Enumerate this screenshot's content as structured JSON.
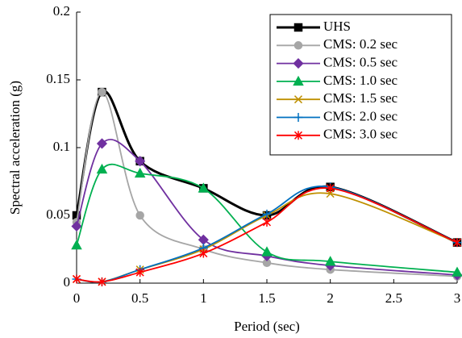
{
  "chart_data": {
    "type": "line",
    "xlabel": "Period (sec)",
    "ylabel": "Spectral acceleration (g)",
    "x": [
      0,
      0.2,
      0.5,
      1,
      1.5,
      2,
      3
    ],
    "xlim": [
      0,
      3
    ],
    "xticks": [
      0,
      0.5,
      1,
      1.5,
      2,
      2.5,
      3
    ],
    "ylim": [
      0,
      0.2
    ],
    "yticks": [
      0,
      0.05,
      0.1,
      0.15,
      0.2
    ],
    "legend": "upper right",
    "smooth": true,
    "series": [
      {
        "name": "UHS",
        "color": "#000000",
        "marker": "square",
        "values": [
          0.05,
          0.141,
          0.09,
          0.07,
          0.05,
          0.071,
          0.03
        ]
      },
      {
        "name": "CMS: 0.2 sec",
        "color": "#a6a6a6",
        "marker": "circle",
        "values": [
          0.045,
          0.141,
          0.05,
          0.025,
          0.015,
          0.01,
          0.005
        ]
      },
      {
        "name": "CMS: 0.5 sec",
        "color": "#7030a0",
        "marker": "diamond",
        "values": [
          0.042,
          0.103,
          0.09,
          0.032,
          0.02,
          0.013,
          0.006
        ]
      },
      {
        "name": "CMS: 1.0 sec",
        "color": "#00b050",
        "marker": "triangle",
        "values": [
          0.028,
          0.084,
          0.081,
          0.07,
          0.023,
          0.016,
          0.008
        ]
      },
      {
        "name": "CMS: 1.5 sec",
        "color": "#bf9000",
        "marker": "x",
        "values": [
          0.003,
          0.001,
          0.01,
          0.025,
          0.05,
          0.066,
          0.03
        ]
      },
      {
        "name": "CMS: 2.0 sec",
        "color": "#0070c0",
        "marker": "plus",
        "values": [
          0.003,
          0.001,
          0.01,
          0.026,
          0.051,
          0.071,
          0.03
        ]
      },
      {
        "name": "CMS: 3.0 sec",
        "color": "#ff0000",
        "marker": "star",
        "values": [
          0.003,
          0.001,
          0.008,
          0.022,
          0.045,
          0.07,
          0.03
        ]
      }
    ]
  }
}
